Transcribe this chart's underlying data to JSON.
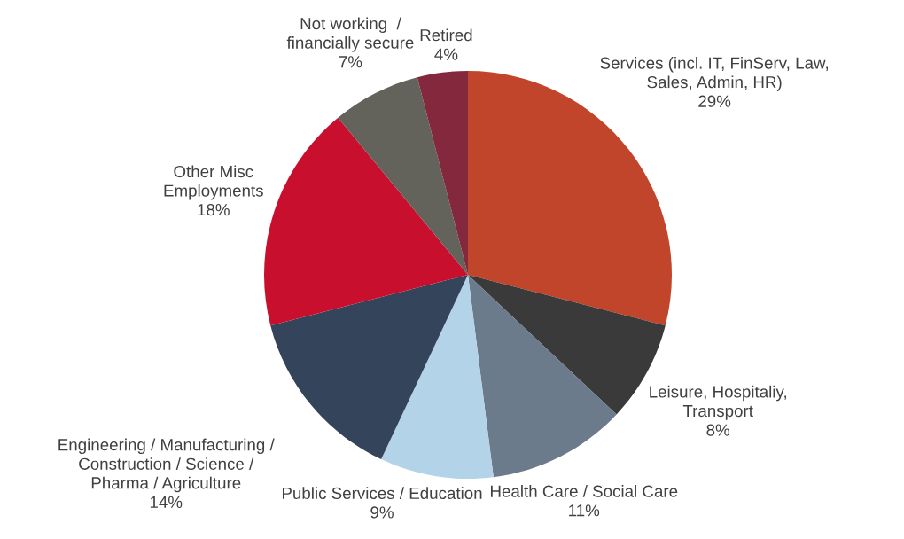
{
  "chart_data": {
    "type": "pie",
    "categories": [
      "Services (incl. IT, FinServ, Law,\nSales, Admin, HR)",
      "Leisure, Hospitaliy,\nTransport",
      "Health Care / Social Care",
      "Public Services / Education",
      "Engineering / Manufacturing /\nConstruction / Science /\nPharma / Agriculture",
      "Other Misc\nEmployments",
      "Not working  /\nfinancially secure",
      "Retired"
    ],
    "values": [
      29,
      8,
      11,
      9,
      14,
      18,
      7,
      4
    ],
    "value_labels": [
      "29%",
      "8%",
      "11%",
      "9%",
      "14%",
      "18%",
      "7%",
      "4%"
    ],
    "colors": [
      "#c0452a",
      "#3a3a3a",
      "#6b7b8b",
      "#b3d3e8",
      "#34445a",
      "#c8102e",
      "#63635b",
      "#84283e"
    ]
  }
}
